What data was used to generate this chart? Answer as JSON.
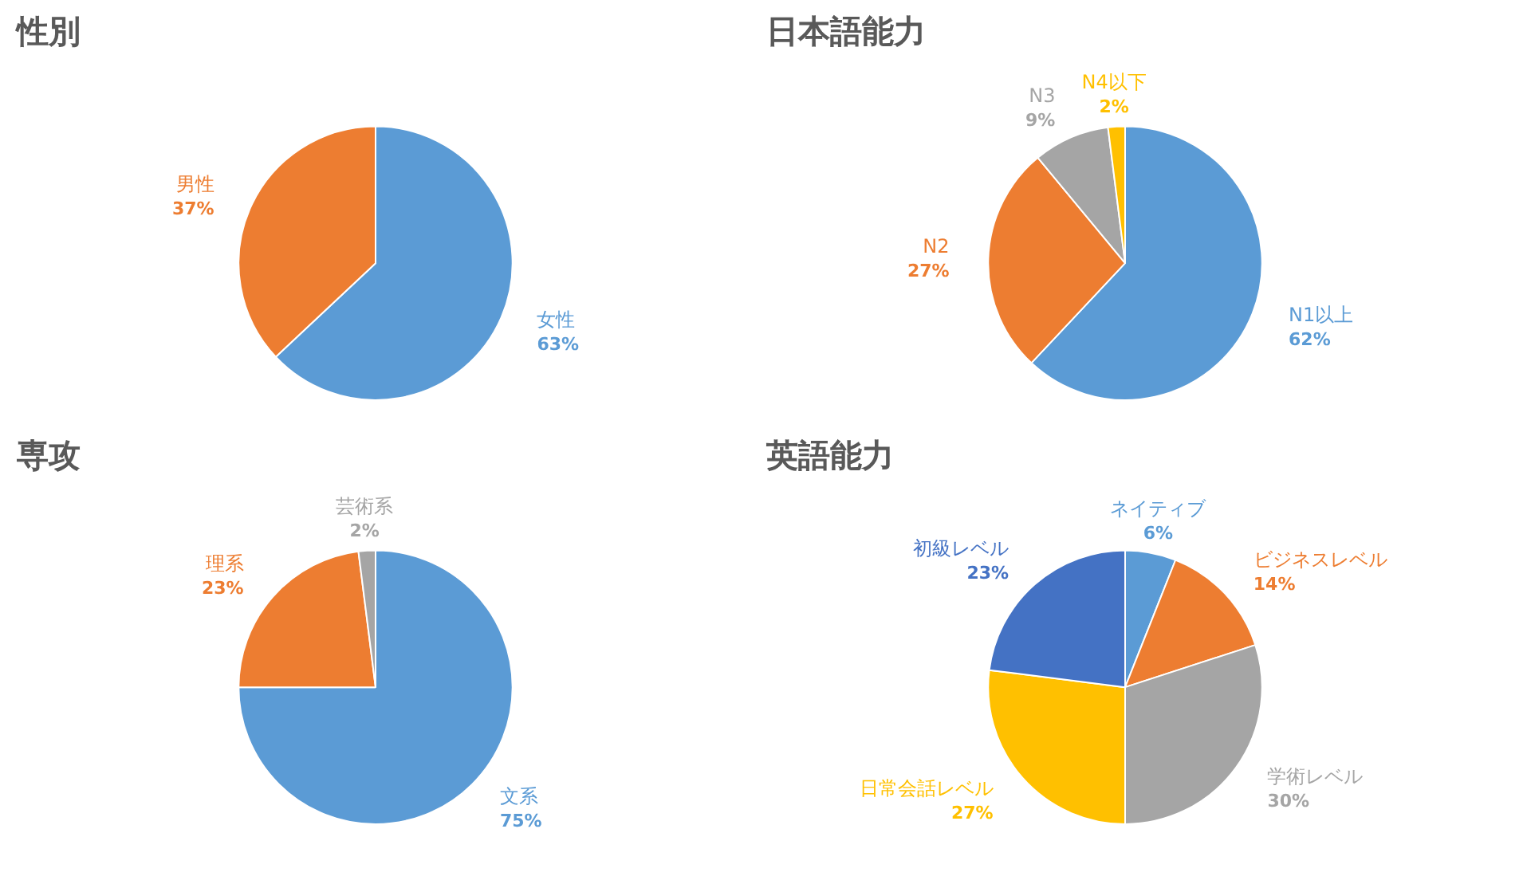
{
  "chart_data": [
    {
      "type": "pie",
      "title": "性別",
      "categories": [
        "女性",
        "男性"
      ],
      "values": [
        63,
        37
      ],
      "value_labels": [
        "63%",
        "37%"
      ],
      "colors": [
        "#5b9bd5",
        "#ed7d31"
      ]
    },
    {
      "type": "pie",
      "title": "日本語能力",
      "categories": [
        "N1以上",
        "N2",
        "N3",
        "N4以下"
      ],
      "values": [
        62,
        27,
        9,
        2
      ],
      "value_labels": [
        "62%",
        "27%",
        "9%",
        "2%"
      ],
      "colors": [
        "#5b9bd5",
        "#ed7d31",
        "#a5a5a5",
        "#ffc000"
      ]
    },
    {
      "type": "pie",
      "title": "専攻",
      "categories": [
        "文系",
        "理系",
        "芸術系"
      ],
      "values": [
        75,
        23,
        2
      ],
      "value_labels": [
        "75%",
        "23%",
        "2%"
      ],
      "colors": [
        "#5b9bd5",
        "#ed7d31",
        "#a5a5a5"
      ]
    },
    {
      "type": "pie",
      "title": "英語能力",
      "categories": [
        "ネイティブ",
        "ビジネスレベル",
        "学術レベル",
        "日常会話レベル",
        "初級レベル"
      ],
      "values": [
        6,
        14,
        30,
        27,
        23
      ],
      "value_labels": [
        "6%",
        "14%",
        "30%",
        "27%",
        "23%"
      ],
      "colors": [
        "#5b9bd5",
        "#ed7d31",
        "#a5a5a5",
        "#ffc000",
        "#4472c4"
      ]
    }
  ]
}
